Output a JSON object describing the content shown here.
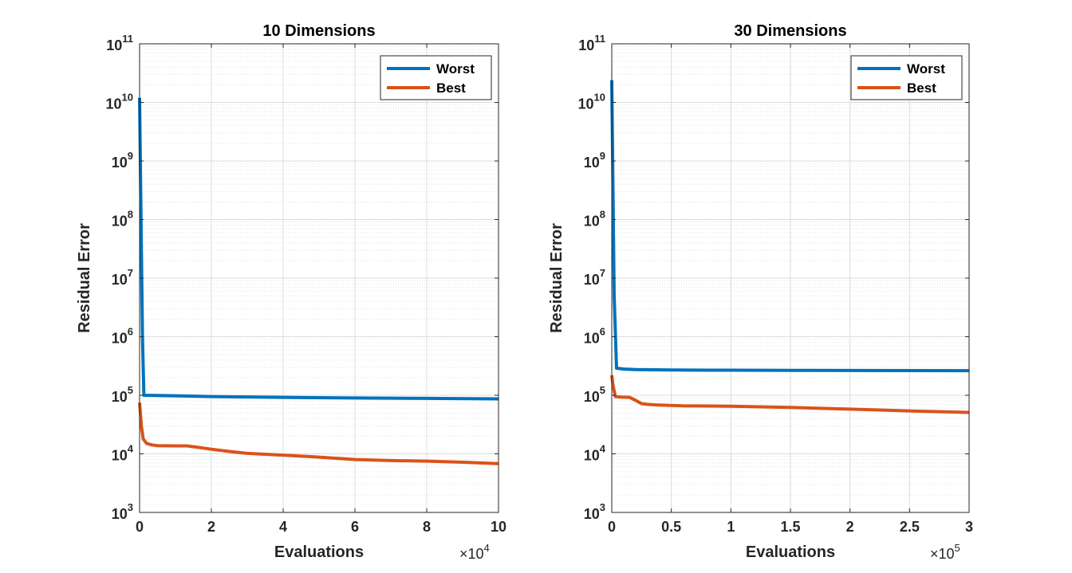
{
  "colors": {
    "worst": "#0072BD",
    "best": "#D95319",
    "axis": "#262626",
    "grid": "#dcdcdc"
  },
  "chart_data": [
    {
      "type": "line",
      "title": "10 Dimensions",
      "xlabel": "Evaluations",
      "ylabel": "Residual Error",
      "x_multiplier_base": "×10",
      "x_multiplier_exp": "4",
      "xlim": [
        0,
        10
      ],
      "yscale": "log",
      "ylim": [
        1000,
        100000000000
      ],
      "xticks": [
        0,
        2,
        4,
        6,
        8,
        10
      ],
      "xtick_labels": [
        "0",
        "2",
        "4",
        "6",
        "8",
        "10"
      ],
      "yticks": [
        3,
        4,
        5,
        6,
        7,
        8,
        9,
        10,
        11
      ],
      "ytick_base": "10",
      "grid": true,
      "legend": "top-right",
      "series": [
        {
          "name": "Worst",
          "color": "#0072BD",
          "x": [
            0,
            0.08,
            0.12,
            1,
            2,
            4,
            6,
            8,
            10
          ],
          "y": [
            12000000000,
            1000000,
            100000,
            98000,
            95000,
            92000,
            90000,
            88500,
            87000
          ]
        },
        {
          "name": "Best",
          "color": "#D95319",
          "x": [
            0,
            0.05,
            0.1,
            0.2,
            0.35,
            0.5,
            1,
            1.3,
            1.6,
            2,
            2.5,
            3,
            4,
            5,
            6,
            7,
            8,
            9,
            10
          ],
          "y": [
            75000,
            30000,
            18000,
            15000,
            14200,
            13800,
            13700,
            13700,
            13000,
            12000,
            11000,
            10200,
            9500,
            8800,
            8000,
            7700,
            7500,
            7200,
            6800
          ]
        }
      ]
    },
    {
      "type": "line",
      "title": "30 Dimensions",
      "xlabel": "Evaluations",
      "ylabel": "Residual Error",
      "x_multiplier_base": "×10",
      "x_multiplier_exp": "5",
      "xlim": [
        0,
        3
      ],
      "yscale": "log",
      "ylim": [
        1000,
        100000000000
      ],
      "xticks": [
        0,
        0.5,
        1,
        1.5,
        2,
        2.5,
        3
      ],
      "xtick_labels": [
        "0",
        "0.5",
        "1",
        "1.5",
        "2",
        "2.5",
        "3"
      ],
      "yticks": [
        3,
        4,
        5,
        6,
        7,
        8,
        9,
        10,
        11
      ],
      "ytick_base": "10",
      "grid": true,
      "legend": "top-right",
      "series": [
        {
          "name": "Worst",
          "color": "#0072BD",
          "x": [
            0,
            0.02,
            0.04,
            0.1,
            0.2,
            0.5,
            1,
            1.5,
            2,
            2.5,
            3
          ],
          "y": [
            24000000000,
            5000000,
            290000,
            280000,
            275000,
            270000,
            268000,
            266000,
            265000,
            264000,
            263000
          ]
        },
        {
          "name": "Best",
          "color": "#D95319",
          "x": [
            0,
            0.01,
            0.03,
            0.08,
            0.15,
            0.2,
            0.25,
            0.3,
            0.4,
            0.6,
            1,
            1.5,
            2,
            2.5,
            3
          ],
          "y": [
            220000,
            150000,
            95000,
            93000,
            92000,
            82000,
            72000,
            70000,
            68000,
            66000,
            65000,
            62000,
            58000,
            54000,
            51000
          ]
        }
      ]
    }
  ]
}
